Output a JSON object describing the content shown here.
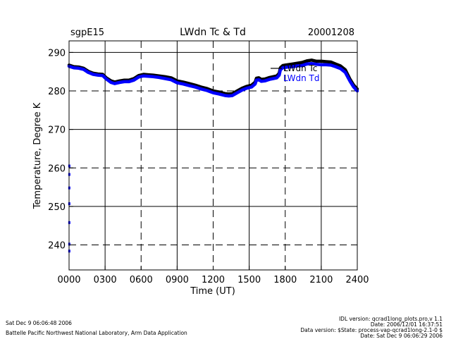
{
  "chart_data": {
    "type": "line",
    "site_label": "sgpE15",
    "title": "LWdn Tc & Td",
    "date_label": "20001208",
    "xlabel": "Time (UT)",
    "ylabel": "Temperature, Degree K",
    "xlim": [
      0,
      24
    ],
    "ylim": [
      233.5,
      293
    ],
    "x_ticks": [
      0,
      3,
      6,
      9,
      12,
      15,
      18,
      21,
      24
    ],
    "x_tick_labels": [
      "0000",
      "0300",
      "0600",
      "0900",
      "1200",
      "1500",
      "1800",
      "2100",
      "2400"
    ],
    "y_ticks": [
      240,
      250,
      260,
      270,
      280,
      290
    ],
    "y_tick_labels": [
      "240",
      "250",
      "260",
      "270",
      "280",
      "290"
    ],
    "grid": true,
    "legend_position": "top-right",
    "series": [
      {
        "name": "LWdn Tc",
        "color": "#000000",
        "x": [
          0,
          0.4,
          0.8,
          1.2,
          1.6,
          2.0,
          2.4,
          2.8,
          3.1,
          3.5,
          3.8,
          4.2,
          4.6,
          5.0,
          5.4,
          5.8,
          6.2,
          6.6,
          7.0,
          7.5,
          8.0,
          8.5,
          9.0,
          9.5,
          10.0,
          10.5,
          11.0,
          11.5,
          12.0,
          12.5,
          13.0,
          13.3,
          13.6,
          14.0,
          14.4,
          14.8,
          15.2,
          15.5,
          15.6,
          15.8,
          16.0,
          16.3,
          16.7,
          17.0,
          17.3,
          17.5,
          17.6,
          17.8,
          18.2,
          18.6,
          19.0,
          19.4,
          19.8,
          20.2,
          20.6,
          21.0,
          21.4,
          21.8,
          22.2,
          22.6,
          23.0,
          23.4,
          23.7,
          24.0
        ],
        "y": [
          286.7,
          286.3,
          286.2,
          285.9,
          285.1,
          284.6,
          284.4,
          284.3,
          283.4,
          282.6,
          282.3,
          282.6,
          282.8,
          282.8,
          283.2,
          284.0,
          284.3,
          284.2,
          284.1,
          283.9,
          283.7,
          283.4,
          282.6,
          282.3,
          281.9,
          281.5,
          281.0,
          280.6,
          280.0,
          279.7,
          279.3,
          279.2,
          279.3,
          280.0,
          280.7,
          281.2,
          281.5,
          282.3,
          283.3,
          283.4,
          283.0,
          283.1,
          283.5,
          283.7,
          283.9,
          284.6,
          286.0,
          286.6,
          286.8,
          287.0,
          287.2,
          287.4,
          287.8,
          288.0,
          287.7,
          287.7,
          287.6,
          287.5,
          287.0,
          286.5,
          285.5,
          283.0,
          281.5,
          280.5
        ]
      },
      {
        "name": "LWdn Td",
        "color": "#0000ff",
        "x": [
          0,
          0.4,
          0.8,
          1.2,
          1.6,
          2.0,
          2.4,
          2.8,
          3.1,
          3.5,
          3.8,
          4.2,
          4.6,
          5.0,
          5.4,
          5.8,
          6.2,
          6.6,
          7.0,
          7.5,
          8.0,
          8.5,
          9.0,
          9.5,
          10.0,
          10.5,
          11.0,
          11.5,
          12.0,
          12.5,
          13.0,
          13.3,
          13.6,
          14.0,
          14.4,
          14.8,
          15.2,
          15.5,
          15.6,
          15.8,
          16.0,
          16.3,
          16.7,
          17.0,
          17.3,
          17.5,
          17.6,
          17.8,
          18.2,
          18.6,
          19.0,
          19.4,
          19.8,
          20.2,
          20.6,
          21.0,
          21.4,
          21.8,
          22.2,
          22.6,
          23.0,
          23.4,
          23.7,
          24.0
        ],
        "y": [
          286.4,
          286.0,
          285.9,
          285.6,
          284.8,
          284.3,
          284.1,
          284.0,
          283.1,
          282.2,
          281.9,
          282.2,
          282.4,
          282.4,
          282.8,
          283.6,
          283.9,
          283.8,
          283.7,
          283.5,
          283.2,
          282.9,
          282.1,
          281.8,
          281.4,
          281.0,
          280.5,
          280.1,
          279.5,
          279.2,
          278.8,
          278.7,
          278.8,
          279.5,
          280.2,
          280.7,
          281.0,
          281.8,
          282.8,
          282.9,
          282.5,
          282.6,
          283.0,
          283.2,
          283.4,
          284.1,
          285.5,
          286.0,
          286.2,
          286.3,
          286.5,
          286.6,
          287.0,
          287.1,
          286.9,
          286.8,
          286.8,
          286.7,
          286.3,
          285.8,
          284.8,
          282.5,
          281.0,
          280.0
        ]
      }
    ],
    "td_early_points": {
      "color": "#0000ff",
      "x": [
        0.02,
        0.02,
        0.02,
        0.02,
        0.02,
        0.02,
        0.02
      ],
      "y": [
        260.5,
        258.3,
        254.8,
        250.7,
        245.8,
        240.2,
        238.4
      ]
    }
  },
  "footer": {
    "left_date": "Sat Dec  9 06:06:48 2006",
    "left_org": "Battelle Pacific Northwest National Laboratory, Arm Data Application",
    "right_line1": "IDL version: qcrad1long_plots.pro,v 1.1",
    "right_line2": "Date: 2006/12/01 16:37:51",
    "right_line3": "Data version: $State: process-vap-qcrad1long-2.1-0 $",
    "right_line4": "Date: Sat Dec  9 06:06:29 2006"
  }
}
